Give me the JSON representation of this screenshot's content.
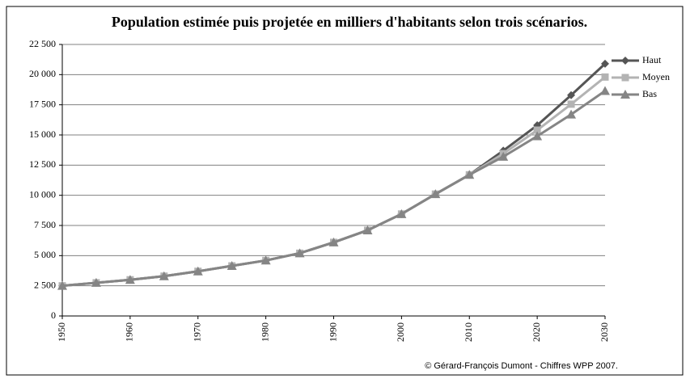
{
  "chart_data": {
    "type": "line",
    "title": "Population estimée puis projetée en milliers d'habitants selon trois scénarios.",
    "footer": "© Gérard-François Dumont - Chiffres WPP 2007.",
    "x": [
      1950,
      1955,
      1960,
      1965,
      1970,
      1975,
      1980,
      1985,
      1990,
      1995,
      2000,
      2005,
      2010,
      2015,
      2020,
      2025,
      2030
    ],
    "xlim": [
      1950,
      2030
    ],
    "xticks": [
      1950,
      1960,
      1970,
      1980,
      1990,
      2000,
      2010,
      2020,
      2030
    ],
    "ylim": [
      0,
      22500
    ],
    "yticks": [
      0,
      {
        "value": 2500,
        "label": "2 500"
      },
      {
        "value": 5000,
        "label": "5 000"
      },
      {
        "value": 7500,
        "label": "7 500"
      },
      {
        "value": 10000,
        "label": "10 000"
      },
      {
        "value": 12500,
        "label": "12 500"
      },
      {
        "value": 15000,
        "label": "15 000"
      },
      {
        "value": 17500,
        "label": "17 500"
      },
      {
        "value": 20000,
        "label": "20 000"
      },
      {
        "value": 22500,
        "label": "22 500"
      }
    ],
    "grid": true,
    "legend": "right",
    "series": [
      {
        "name": "Haut",
        "color": "#555555",
        "marker": "diamond",
        "values": [
          2500,
          2750,
          3000,
          3300,
          3700,
          4150,
          4600,
          5200,
          6100,
          7100,
          8450,
          10100,
          11700,
          13700,
          15800,
          18300,
          20900
        ]
      },
      {
        "name": "Moyen",
        "color": "#b3b3b3",
        "marker": "square",
        "values": [
          2500,
          2750,
          3000,
          3300,
          3700,
          4150,
          4600,
          5200,
          6100,
          7100,
          8450,
          10100,
          11700,
          13450,
          15400,
          17550,
          19800
        ]
      },
      {
        "name": "Bas",
        "color": "#858585",
        "marker": "triangle",
        "values": [
          2500,
          2750,
          3000,
          3300,
          3700,
          4150,
          4600,
          5200,
          6100,
          7100,
          8450,
          10100,
          11700,
          13200,
          14900,
          16700,
          18650
        ]
      }
    ]
  }
}
